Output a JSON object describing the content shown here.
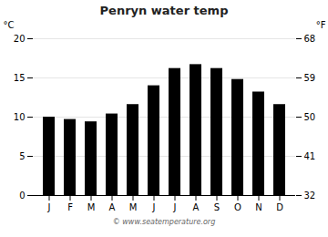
{
  "chart_data": {
    "type": "bar",
    "title": "Penryn water temp",
    "categories": [
      "J",
      "F",
      "M",
      "A",
      "M",
      "J",
      "J",
      "A",
      "S",
      "O",
      "N",
      "D"
    ],
    "values": [
      10.0,
      9.7,
      9.4,
      10.4,
      11.6,
      14.0,
      16.2,
      16.7,
      16.2,
      14.8,
      13.2,
      11.6
    ],
    "ylim": [
      0,
      20
    ],
    "yticks": [
      0,
      5,
      10,
      15,
      20
    ],
    "ylabel": "°C",
    "y2lim": [
      32,
      68
    ],
    "y2ticks": [
      32,
      41,
      50,
      59,
      68
    ],
    "y2label": "°F",
    "grid": true,
    "caption": "© www.seatemperature.org"
  }
}
